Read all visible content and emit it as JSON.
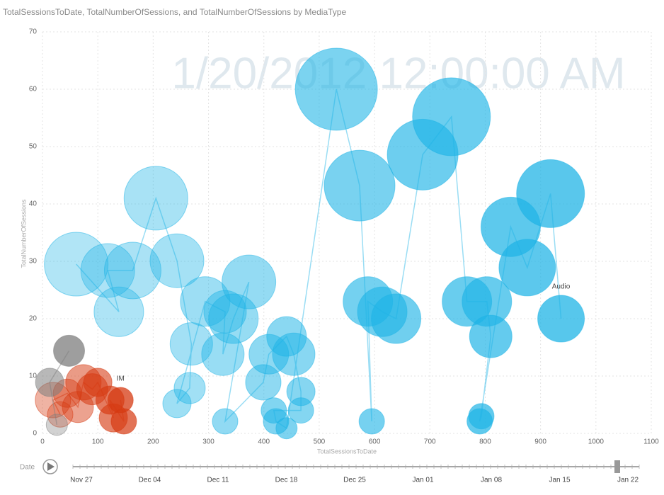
{
  "chart_data": {
    "type": "scatter",
    "title": "TotalSessionsToDate, TotalNumberOfSessions, and TotalNumberOfSessions by MediaType",
    "watermark": "1/20/2012 12:00:00 AM",
    "x_label": "TotalSessionsToDate",
    "y_label": "TotalNumberOfSessions",
    "xlim": [
      0,
      1100
    ],
    "ylim": [
      0,
      70
    ],
    "xticks": [
      0,
      100,
      200,
      300,
      400,
      500,
      600,
      700,
      800,
      900,
      1000,
      1100
    ],
    "yticks": [
      0,
      10,
      20,
      30,
      40,
      50,
      60,
      70
    ],
    "grid": true,
    "series": [
      {
        "name": "Audio",
        "color": "#1fb4e6",
        "x": [
          61,
          138,
          118,
          163,
          205,
          243,
          269,
          266,
          243,
          294,
          330,
          326,
          345,
          373,
          330,
          399,
          409,
          441,
          454,
          467,
          467,
          418,
          422,
          441,
          531,
          573,
          595,
          588,
          614,
          639,
          687,
          739,
          767,
          803,
          810,
          793,
          790,
          846,
          876,
          918,
          937
        ],
        "values": [
          29.5,
          21.2,
          28.4,
          28.4,
          41,
          30.1,
          15.6,
          7.9,
          5.2,
          23,
          21.2,
          13.8,
          20,
          26.4,
          2.1,
          8.9,
          13.8,
          16.9,
          13.8,
          7.3,
          4,
          4,
          2.1,
          0.9,
          60,
          43.2,
          2.1,
          23,
          21.2,
          20,
          48.6,
          55.2,
          23,
          23,
          16.9,
          3,
          2.1,
          36,
          28.9,
          41.8,
          20
        ],
        "sizes": [
          45,
          35,
          38,
          40,
          45,
          38,
          30,
          22,
          20,
          35,
          30,
          30,
          35,
          38,
          18,
          25,
          28,
          28,
          30,
          20,
          18,
          18,
          18,
          15,
          58,
          50,
          18,
          35,
          35,
          35,
          50,
          55,
          35,
          35,
          30,
          18,
          18,
          42,
          40,
          48,
          33
        ]
      },
      {
        "name": "IM",
        "color": "#d63a12",
        "x": [
          32,
          19,
          45,
          64,
          74,
          90,
          100,
          128,
          122,
          147,
          141
        ],
        "values": [
          3.3,
          5.8,
          7,
          4.6,
          8.9,
          7.7,
          8.9,
          2.7,
          5.8,
          2.1,
          5.8
        ],
        "sizes": [
          18,
          25,
          20,
          22,
          25,
          22,
          20,
          20,
          20,
          18,
          18
        ]
      },
      {
        "name": null,
        "color": "#7d7d7d",
        "x": [
          26,
          13,
          48
        ],
        "values": [
          1.5,
          8.9,
          14.4
        ],
        "sizes": [
          15,
          20,
          22
        ]
      }
    ],
    "play_axis": {
      "label": "Date",
      "ticks": [
        "Nov 27",
        "Dec 04",
        "Dec 11",
        "Dec 18",
        "Dec 25",
        "Jan 01",
        "Jan 08",
        "Jan 15",
        "Jan 22"
      ]
    }
  }
}
